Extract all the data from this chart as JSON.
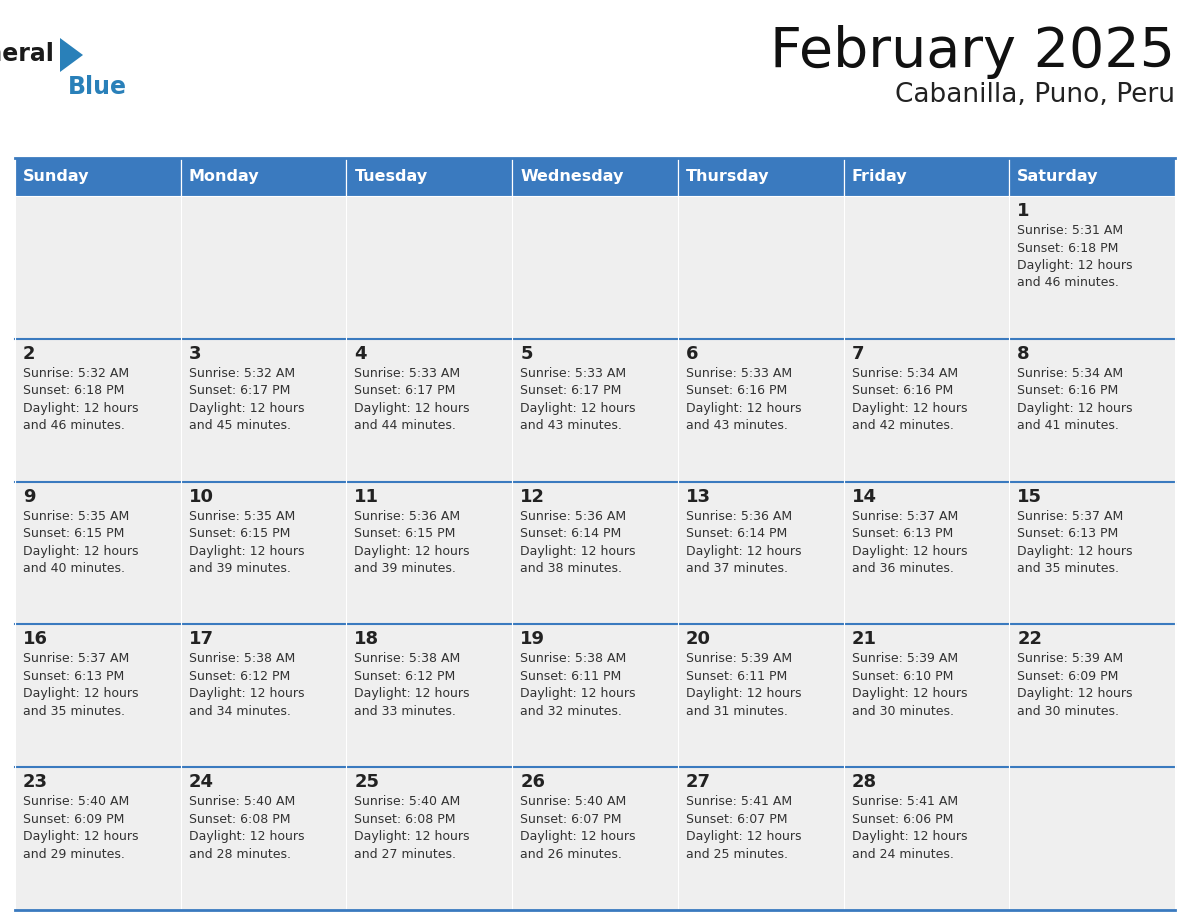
{
  "title": "February 2025",
  "subtitle": "Cabanilla, Puno, Peru",
  "days_of_week": [
    "Sunday",
    "Monday",
    "Tuesday",
    "Wednesday",
    "Thursday",
    "Friday",
    "Saturday"
  ],
  "header_bg": "#3a7abf",
  "header_text": "#ffffff",
  "cell_bg": "#efefef",
  "cell_border_color": "#3a7abf",
  "day_number_color": "#222222",
  "text_color": "#333333",
  "logo_general_color": "#1a1a1a",
  "logo_blue_color": "#2980b9",
  "calendar": [
    [
      null,
      null,
      null,
      null,
      null,
      null,
      1
    ],
    [
      2,
      3,
      4,
      5,
      6,
      7,
      8
    ],
    [
      9,
      10,
      11,
      12,
      13,
      14,
      15
    ],
    [
      16,
      17,
      18,
      19,
      20,
      21,
      22
    ],
    [
      23,
      24,
      25,
      26,
      27,
      28,
      null
    ]
  ],
  "sunrise": {
    "1": "5:31 AM",
    "2": "5:32 AM",
    "3": "5:32 AM",
    "4": "5:33 AM",
    "5": "5:33 AM",
    "6": "5:33 AM",
    "7": "5:34 AM",
    "8": "5:34 AM",
    "9": "5:35 AM",
    "10": "5:35 AM",
    "11": "5:36 AM",
    "12": "5:36 AM",
    "13": "5:36 AM",
    "14": "5:37 AM",
    "15": "5:37 AM",
    "16": "5:37 AM",
    "17": "5:38 AM",
    "18": "5:38 AM",
    "19": "5:38 AM",
    "20": "5:39 AM",
    "21": "5:39 AM",
    "22": "5:39 AM",
    "23": "5:40 AM",
    "24": "5:40 AM",
    "25": "5:40 AM",
    "26": "5:40 AM",
    "27": "5:41 AM",
    "28": "5:41 AM"
  },
  "sunset": {
    "1": "6:18 PM",
    "2": "6:18 PM",
    "3": "6:17 PM",
    "4": "6:17 PM",
    "5": "6:17 PM",
    "6": "6:16 PM",
    "7": "6:16 PM",
    "8": "6:16 PM",
    "9": "6:15 PM",
    "10": "6:15 PM",
    "11": "6:15 PM",
    "12": "6:14 PM",
    "13": "6:14 PM",
    "14": "6:13 PM",
    "15": "6:13 PM",
    "16": "6:13 PM",
    "17": "6:12 PM",
    "18": "6:12 PM",
    "19": "6:11 PM",
    "20": "6:11 PM",
    "21": "6:10 PM",
    "22": "6:09 PM",
    "23": "6:09 PM",
    "24": "6:08 PM",
    "25": "6:08 PM",
    "26": "6:07 PM",
    "27": "6:07 PM",
    "28": "6:06 PM"
  },
  "daylight": {
    "1": "12 hours and 46 minutes.",
    "2": "12 hours and 46 minutes.",
    "3": "12 hours and 45 minutes.",
    "4": "12 hours and 44 minutes.",
    "5": "12 hours and 43 minutes.",
    "6": "12 hours and 43 minutes.",
    "7": "12 hours and 42 minutes.",
    "8": "12 hours and 41 minutes.",
    "9": "12 hours and 40 minutes.",
    "10": "12 hours and 39 minutes.",
    "11": "12 hours and 39 minutes.",
    "12": "12 hours and 38 minutes.",
    "13": "12 hours and 37 minutes.",
    "14": "12 hours and 36 minutes.",
    "15": "12 hours and 35 minutes.",
    "16": "12 hours and 35 minutes.",
    "17": "12 hours and 34 minutes.",
    "18": "12 hours and 33 minutes.",
    "19": "12 hours and 32 minutes.",
    "20": "12 hours and 31 minutes.",
    "21": "12 hours and 30 minutes.",
    "22": "12 hours and 30 minutes.",
    "23": "12 hours and 29 minutes.",
    "24": "12 hours and 28 minutes.",
    "25": "12 hours and 27 minutes.",
    "26": "12 hours and 26 minutes.",
    "27": "12 hours and 25 minutes.",
    "28": "12 hours and 24 minutes."
  }
}
